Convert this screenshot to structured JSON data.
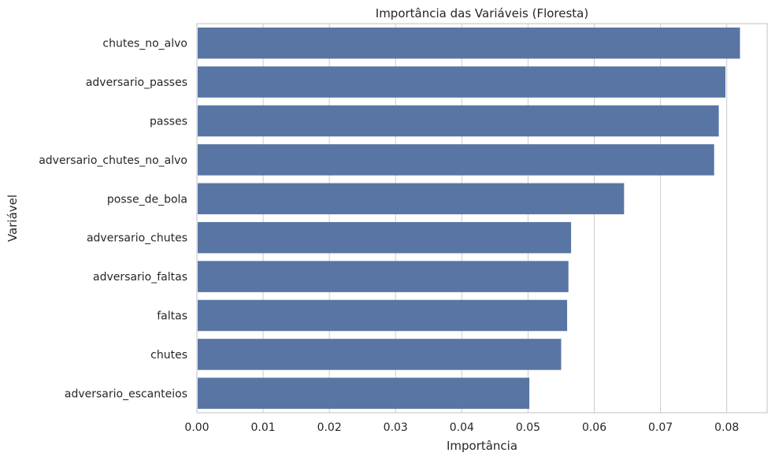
{
  "chart_data": {
    "type": "bar",
    "orientation": "horizontal",
    "title": "Importância das Variáveis (Floresta)",
    "xlabel": "Importância",
    "ylabel": "Variável",
    "categories": [
      "chutes_no_alvo",
      "adversario_passes",
      "passes",
      "adversario_chutes_no_alvo",
      "posse_de_bola",
      "adversario_chutes",
      "adversario_faltas",
      "faltas",
      "chutes",
      "adversario_escanteios"
    ],
    "values": [
      0.082,
      0.0798,
      0.0788,
      0.0781,
      0.0645,
      0.0565,
      0.0561,
      0.0559,
      0.055,
      0.0502
    ],
    "xlim": [
      0,
      0.0861
    ],
    "xticks": [
      0.0,
      0.01,
      0.02,
      0.03,
      0.04,
      0.05,
      0.06,
      0.07,
      0.08
    ],
    "xtick_labels": [
      "0.00",
      "0.01",
      "0.02",
      "0.03",
      "0.04",
      "0.05",
      "0.06",
      "0.07",
      "0.08"
    ],
    "grid": "vertical",
    "bar_color": "#5975a4"
  }
}
